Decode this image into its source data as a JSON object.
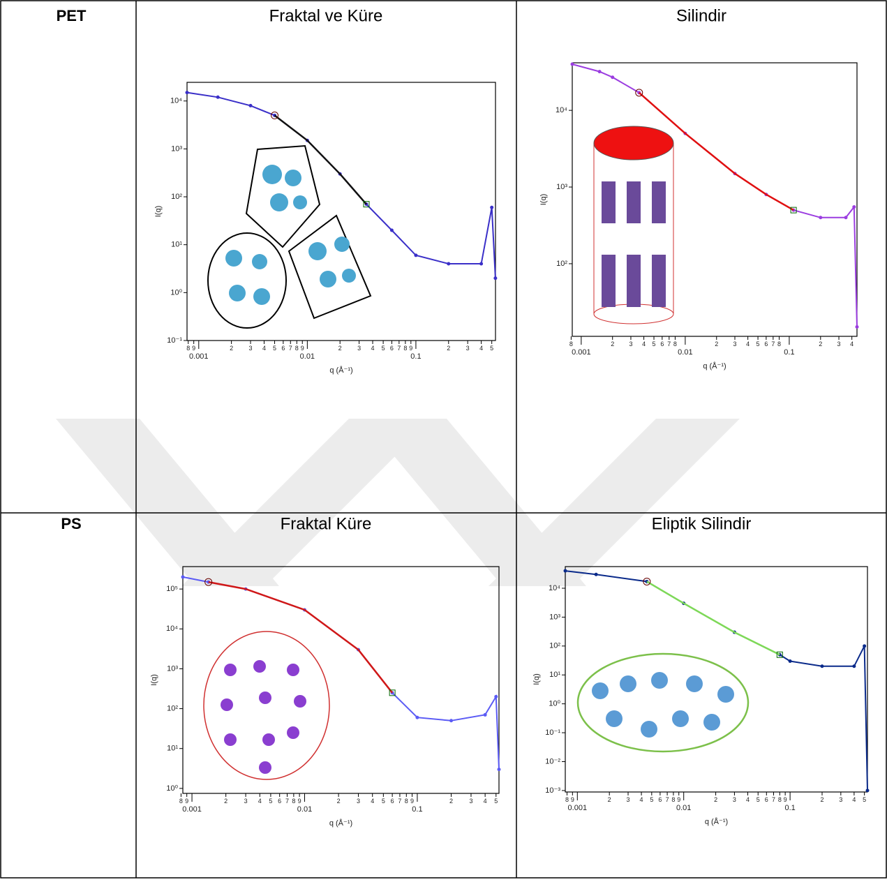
{
  "table": {
    "rows": [
      {
        "label": "PET",
        "cells": [
          {
            "title": "Fraktal ve Küre",
            "chart": {
              "type": "line",
              "xlog": true,
              "ylog": true,
              "xlabel": "q (Å⁻¹)",
              "ylabel": "I(q)",
              "xlim": [
                0.00078,
                0.541
              ],
              "ylim": [
                0.1,
                24500
              ],
              "xticks": [
                0.001,
                0.01,
                0.1
              ],
              "xminor": [
                {
                  "value": 0.0008,
                  "label": "8"
                },
                {
                  "value": 0.0009,
                  "label": "9"
                },
                {
                  "value": 0.002,
                  "label": "2"
                },
                {
                  "value": 0.003,
                  "label": "3"
                },
                {
                  "value": 0.004,
                  "label": "4"
                },
                {
                  "value": 0.005,
                  "label": "5"
                },
                {
                  "value": 0.006,
                  "label": "6"
                },
                {
                  "value": 0.007,
                  "label": "7"
                },
                {
                  "value": 0.008,
                  "label": "8"
                },
                {
                  "value": 0.009,
                  "label": "9"
                },
                {
                  "value": 0.02,
                  "label": "2"
                },
                {
                  "value": 0.03,
                  "label": "3"
                },
                {
                  "value": 0.04,
                  "label": "4"
                },
                {
                  "value": 0.05,
                  "label": "5"
                },
                {
                  "value": 0.06,
                  "label": "6"
                },
                {
                  "value": 0.07,
                  "label": "7"
                },
                {
                  "value": 0.08,
                  "label": "8"
                },
                {
                  "value": 0.09,
                  "label": "9"
                },
                {
                  "value": 0.2,
                  "label": "2"
                },
                {
                  "value": 0.3,
                  "label": "3"
                },
                {
                  "value": 0.4,
                  "label": "4"
                },
                {
                  "value": 0.5,
                  "label": "5"
                }
              ],
              "yticks": [
                {
                  "value": 0.1,
                  "label": "10⁻¹"
                },
                {
                  "value": 1,
                  "label": "10⁰"
                },
                {
                  "value": 10,
                  "label": "10¹"
                },
                {
                  "value": 100,
                  "label": "10²"
                },
                {
                  "value": 1000,
                  "label": "10³"
                },
                {
                  "value": 10000,
                  "label": "10⁴"
                }
              ],
              "x": [
                0.00078,
                0.0015,
                0.003,
                0.005,
                0.01,
                0.02,
                0.035,
                0.06,
                0.1,
                0.2,
                0.4,
                0.5,
                0.54
              ],
              "series": [
                {
                  "color": "#3a2fc8",
                  "values": [
                    15000,
                    12000,
                    8000,
                    5000,
                    1500,
                    300,
                    70,
                    20,
                    6,
                    4,
                    4,
                    60,
                    2
                  ]
                },
                {
                  "color": "#111111",
                  "values": [
                    null,
                    null,
                    null,
                    5000,
                    1500,
                    300,
                    70,
                    null,
                    null,
                    null,
                    null,
                    null,
                    null
                  ]
                }
              ]
            }
          },
          {
            "title": "Silindir",
            "chart": {
              "type": "line",
              "xlog": true,
              "ylog": true,
              "xlabel": "q (Å⁻¹)",
              "ylabel": "I(q)",
              "xlim": [
                0.00082,
                0.448
              ],
              "ylim": [
                11.3,
                41700
              ],
              "xticks": [
                0.001,
                0.01,
                0.1
              ],
              "xminor": [
                {
                  "value": 0.0008,
                  "label": "8"
                },
                {
                  "value": 0.002,
                  "label": "2"
                },
                {
                  "value": 0.003,
                  "label": "3"
                },
                {
                  "value": 0.004,
                  "label": "4"
                },
                {
                  "value": 0.005,
                  "label": "5"
                },
                {
                  "value": 0.006,
                  "label": "6"
                },
                {
                  "value": 0.007,
                  "label": "7"
                },
                {
                  "value": 0.008,
                  "label": "8"
                },
                {
                  "value": 0.02,
                  "label": "2"
                },
                {
                  "value": 0.03,
                  "label": "3"
                },
                {
                  "value": 0.04,
                  "label": "4"
                },
                {
                  "value": 0.05,
                  "label": "5"
                },
                {
                  "value": 0.06,
                  "label": "6"
                },
                {
                  "value": 0.07,
                  "label": "7"
                },
                {
                  "value": 0.08,
                  "label": "8"
                },
                {
                  "value": 0.2,
                  "label": "2"
                },
                {
                  "value": 0.3,
                  "label": "3"
                },
                {
                  "value": 0.4,
                  "label": "4"
                }
              ],
              "yticks": [
                {
                  "value": 100,
                  "label": "10²"
                },
                {
                  "value": 1000,
                  "label": "10³"
                },
                {
                  "value": 10000,
                  "label": "10⁴"
                }
              ],
              "x": [
                0.00082,
                0.0015,
                0.002,
                0.0036,
                0.01,
                0.03,
                0.06,
                0.11,
                0.2,
                0.35,
                0.42,
                0.448
              ],
              "series": [
                {
                  "color": "#9b3de0",
                  "values": [
                    40000,
                    32000,
                    27000,
                    17000,
                    5000,
                    1500,
                    800,
                    500,
                    400,
                    400,
                    550,
                    15
                  ]
                },
                {
                  "color": "#e01010",
                  "values": [
                    null,
                    null,
                    null,
                    17000,
                    5000,
                    1500,
                    800,
                    500,
                    null,
                    null,
                    null,
                    null
                  ]
                }
              ]
            }
          }
        ]
      },
      {
        "label": "PS",
        "cells": [
          {
            "title": "Fraktal Küre",
            "chart": {
              "type": "line",
              "xlog": true,
              "ylog": true,
              "xlabel": "q (Å⁻¹)",
              "ylabel": "I(q)",
              "xlim": [
                0.00083,
                0.531
              ],
              "ylim": [
                0.75,
                365000
              ],
              "xticks": [
                0.001,
                0.01,
                0.1
              ],
              "xminor": [
                {
                  "value": 0.0008,
                  "label": "8"
                },
                {
                  "value": 0.0009,
                  "label": "9"
                },
                {
                  "value": 0.002,
                  "label": "2"
                },
                {
                  "value": 0.003,
                  "label": "3"
                },
                {
                  "value": 0.004,
                  "label": "4"
                },
                {
                  "value": 0.005,
                  "label": "5"
                },
                {
                  "value": 0.006,
                  "label": "6"
                },
                {
                  "value": 0.007,
                  "label": "7"
                },
                {
                  "value": 0.008,
                  "label": "8"
                },
                {
                  "value": 0.009,
                  "label": "9"
                },
                {
                  "value": 0.02,
                  "label": "2"
                },
                {
                  "value": 0.03,
                  "label": "3"
                },
                {
                  "value": 0.04,
                  "label": "4"
                },
                {
                  "value": 0.05,
                  "label": "5"
                },
                {
                  "value": 0.06,
                  "label": "6"
                },
                {
                  "value": 0.07,
                  "label": "7"
                },
                {
                  "value": 0.08,
                  "label": "8"
                },
                {
                  "value": 0.09,
                  "label": "9"
                },
                {
                  "value": 0.2,
                  "label": "2"
                },
                {
                  "value": 0.3,
                  "label": "3"
                },
                {
                  "value": 0.4,
                  "label": "4"
                },
                {
                  "value": 0.5,
                  "label": "5"
                }
              ],
              "yticks": [
                {
                  "value": 1,
                  "label": "10⁰"
                },
                {
                  "value": 10,
                  "label": "10¹"
                },
                {
                  "value": 100,
                  "label": "10²"
                },
                {
                  "value": 1000,
                  "label": "10³"
                },
                {
                  "value": 10000,
                  "label": "10⁴"
                },
                {
                  "value": 100000,
                  "label": "10⁵"
                }
              ],
              "x": [
                0.00083,
                0.0014,
                0.003,
                0.01,
                0.03,
                0.06,
                0.1,
                0.2,
                0.4,
                0.5,
                0.531
              ],
              "series": [
                {
                  "color": "#5b5bf5",
                  "values": [
                    200000,
                    150000,
                    100000,
                    30000,
                    3000,
                    250,
                    60,
                    50,
                    70,
                    200,
                    3
                  ]
                },
                {
                  "color": "#d01818",
                  "values": [
                    null,
                    150000,
                    100000,
                    30000,
                    3000,
                    250,
                    null,
                    null,
                    null,
                    null,
                    null
                  ]
                }
              ]
            }
          },
          {
            "title": "Eliptik Silindir",
            "chart": {
              "type": "line",
              "xlog": true,
              "ylog": true,
              "xlabel": "q (Å⁻¹)",
              "ylabel": "I(q)",
              "xlim": [
                0.00077,
                0.534
              ],
              "ylim": [
                0.00089,
                56000
              ],
              "xticks": [
                0.001,
                0.01,
                0.1
              ],
              "xminor": [
                {
                  "value": 0.0008,
                  "label": "8"
                },
                {
                  "value": 0.0009,
                  "label": "9"
                },
                {
                  "value": 0.002,
                  "label": "2"
                },
                {
                  "value": 0.003,
                  "label": "3"
                },
                {
                  "value": 0.004,
                  "label": "4"
                },
                {
                  "value": 0.005,
                  "label": "5"
                },
                {
                  "value": 0.006,
                  "label": "6"
                },
                {
                  "value": 0.007,
                  "label": "7"
                },
                {
                  "value": 0.008,
                  "label": "8"
                },
                {
                  "value": 0.009,
                  "label": "9"
                },
                {
                  "value": 0.02,
                  "label": "2"
                },
                {
                  "value": 0.03,
                  "label": "3"
                },
                {
                  "value": 0.04,
                  "label": "4"
                },
                {
                  "value": 0.05,
                  "label": "5"
                },
                {
                  "value": 0.06,
                  "label": "6"
                },
                {
                  "value": 0.07,
                  "label": "7"
                },
                {
                  "value": 0.08,
                  "label": "8"
                },
                {
                  "value": 0.09,
                  "label": "9"
                },
                {
                  "value": 0.2,
                  "label": "2"
                },
                {
                  "value": 0.3,
                  "label": "3"
                },
                {
                  "value": 0.4,
                  "label": "4"
                },
                {
                  "value": 0.5,
                  "label": "5"
                }
              ],
              "yticks": [
                {
                  "value": 0.001,
                  "label": "10⁻³"
                },
                {
                  "value": 0.01,
                  "label": "10⁻²"
                },
                {
                  "value": 0.1,
                  "label": "10⁻¹"
                },
                {
                  "value": 1,
                  "label": "10⁰"
                },
                {
                  "value": 10,
                  "label": "10¹"
                },
                {
                  "value": 100,
                  "label": "10²"
                },
                {
                  "value": 1000,
                  "label": "10³"
                },
                {
                  "value": 10000,
                  "label": "10⁴"
                }
              ],
              "x": [
                0.00077,
                0.0015,
                0.0045,
                0.01,
                0.03,
                0.08,
                0.1,
                0.2,
                0.4,
                0.5,
                0.534
              ],
              "series": [
                {
                  "color": "#0a2a8a",
                  "values": [
                    40000,
                    30000,
                    17000,
                    3000,
                    300,
                    50,
                    30,
                    20,
                    20,
                    100,
                    0.001
                  ]
                },
                {
                  "color": "#7ed957",
                  "values": [
                    null,
                    null,
                    17000,
                    3000,
                    300,
                    50,
                    null,
                    null,
                    null,
                    null,
                    null
                  ]
                }
              ]
            }
          }
        ]
      }
    ]
  }
}
